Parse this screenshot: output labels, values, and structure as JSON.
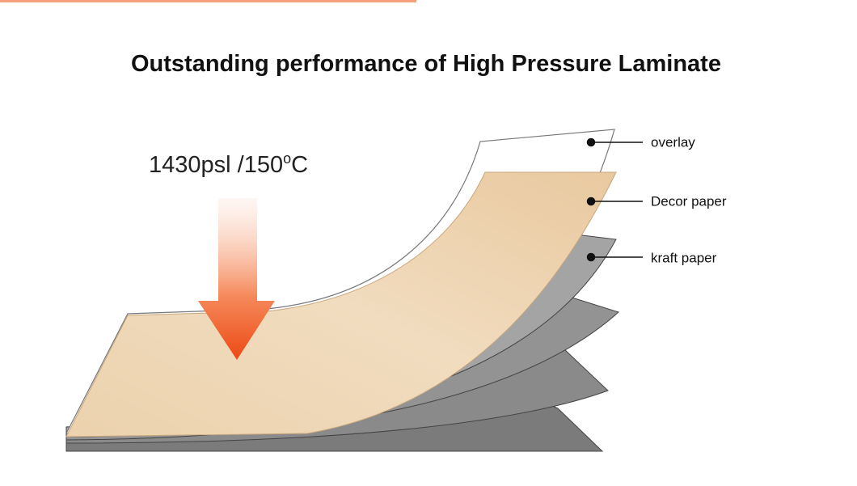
{
  "header": {
    "title": "Outstanding performance of High Pressure Laminate"
  },
  "pressure": {
    "text": "1430psl /150",
    "degree": "o",
    "unit": "C"
  },
  "layers": [
    {
      "label": "overlay"
    },
    {
      "label": "Decor paper"
    },
    {
      "label": "kraft paper"
    }
  ]
}
